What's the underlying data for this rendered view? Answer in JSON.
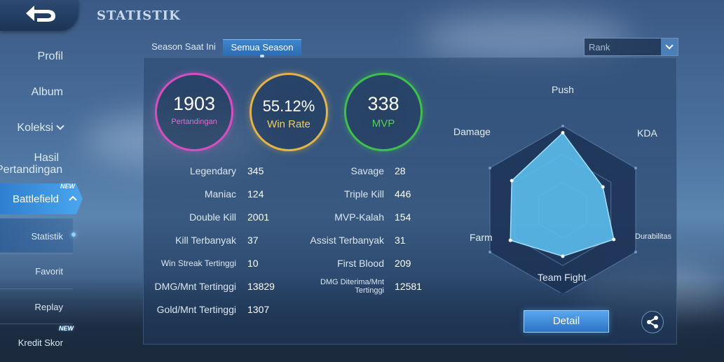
{
  "header": {
    "title": "STATISTIK"
  },
  "sidebar": {
    "items": [
      {
        "label": "Profil"
      },
      {
        "label": "Album"
      },
      {
        "label": "Koleksi"
      },
      {
        "label": "Hasil Pertandingan"
      },
      {
        "label": "Battlefield",
        "badge": "NEW"
      },
      {
        "label": "Statistik"
      },
      {
        "label": "Favorit"
      },
      {
        "label": "Replay"
      },
      {
        "label": "Kredit Skor",
        "badge": "NEW"
      }
    ]
  },
  "tabs": [
    {
      "label": "Season Saat Ini",
      "active": false
    },
    {
      "label": "Semua Season",
      "active": true
    }
  ],
  "filter": {
    "selected": "Rank"
  },
  "summary": {
    "matches": {
      "value": "1903",
      "label": "Pertandingan",
      "color": "#d64fc0"
    },
    "winrate": {
      "value": "55.12%",
      "label": "Win Rate",
      "color": "#e3b448"
    },
    "mvp": {
      "value": "338",
      "label": "MVP",
      "color": "#3fbf4c"
    }
  },
  "stats_left": [
    {
      "label": "Legendary",
      "value": "345"
    },
    {
      "label": "Maniac",
      "value": "124"
    },
    {
      "label": "Double Kill",
      "value": "2001"
    },
    {
      "label": "Kill Terbanyak",
      "value": "37"
    },
    {
      "label": "Win Streak Tertinggi",
      "value": "10"
    },
    {
      "label": "DMG/Mnt Tertinggi",
      "value": "13829"
    },
    {
      "label": "Gold/Mnt Tertinggi",
      "value": "1307"
    }
  ],
  "stats_right": [
    {
      "label": "Savage",
      "value": "28"
    },
    {
      "label": "Triple Kill",
      "value": "446"
    },
    {
      "label": "MVP-Kalah",
      "value": "154"
    },
    {
      "label": "Assist Terbanyak",
      "value": "31"
    },
    {
      "label": "First Blood",
      "value": "209"
    },
    {
      "label": "DMG Diterima/Mnt Tertinggi",
      "value": "12581"
    }
  ],
  "chart_data": {
    "type": "radar",
    "axes": [
      "Push",
      "KDA",
      "Durabilitas",
      "Team Fight",
      "Farm",
      "Damage"
    ],
    "values": [
      0.92,
      0.55,
      0.7,
      0.55,
      0.72,
      0.7
    ],
    "range": [
      0,
      1
    ],
    "fill_color": "#5cc0f0"
  },
  "buttons": {
    "detail": "Detail"
  }
}
